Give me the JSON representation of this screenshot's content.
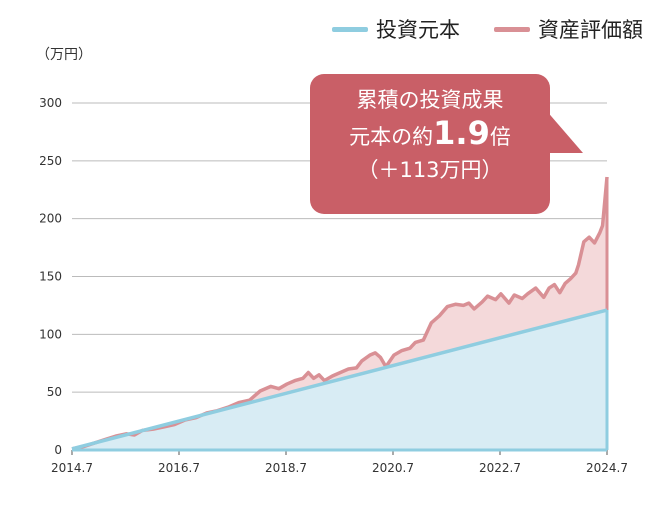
{
  "legend": [
    {
      "label": "投資元本",
      "color": "#8fcde0"
    },
    {
      "label": "資産評価額",
      "color": "#d99095"
    }
  ],
  "unit_label": "（万円）",
  "callout": {
    "line1": "累積の投資成果",
    "line2_pre": "元本の約",
    "line2_big": "1.9",
    "line2_post": "倍",
    "line3": "（＋113万円）",
    "color": "#c95f67"
  },
  "chart_data": {
    "type": "area",
    "x_ticks": [
      "2014.7",
      "2016.7",
      "2018.7",
      "2020.7",
      "2022.7",
      "2024.7"
    ],
    "y_ticks": [
      0,
      50,
      100,
      150,
      200,
      250,
      300
    ],
    "ylim": [
      0,
      300
    ],
    "xlim": [
      2014.583,
      2024.583
    ],
    "grid": true,
    "series": [
      {
        "name": "投資元本",
        "color": "#8fcde0",
        "fill": "#d8ecf4",
        "points": [
          [
            2014.583,
            1
          ],
          [
            2024.583,
            121
          ]
        ]
      },
      {
        "name": "資産評価額",
        "color": "#d99095",
        "fill": "#f4d9da",
        "points": [
          [
            2014.583,
            1
          ],
          [
            2014.8,
            3
          ],
          [
            2015.0,
            6
          ],
          [
            2015.2,
            9
          ],
          [
            2015.4,
            12
          ],
          [
            2015.6,
            14
          ],
          [
            2015.75,
            13
          ],
          [
            2015.9,
            17
          ],
          [
            2016.1,
            18
          ],
          [
            2016.3,
            20
          ],
          [
            2016.5,
            22
          ],
          [
            2016.7,
            26
          ],
          [
            2016.9,
            28
          ],
          [
            2017.1,
            32
          ],
          [
            2017.3,
            34
          ],
          [
            2017.5,
            37
          ],
          [
            2017.7,
            41
          ],
          [
            2017.9,
            43
          ],
          [
            2018.1,
            51
          ],
          [
            2018.3,
            55
          ],
          [
            2018.45,
            53
          ],
          [
            2018.6,
            57
          ],
          [
            2018.75,
            60
          ],
          [
            2018.9,
            62
          ],
          [
            2019.0,
            67
          ],
          [
            2019.1,
            62
          ],
          [
            2019.2,
            65
          ],
          [
            2019.3,
            60
          ],
          [
            2019.45,
            64
          ],
          [
            2019.6,
            67
          ],
          [
            2019.75,
            70
          ],
          [
            2019.9,
            71
          ],
          [
            2020.0,
            77
          ],
          [
            2020.15,
            82
          ],
          [
            2020.25,
            84
          ],
          [
            2020.35,
            80
          ],
          [
            2020.45,
            72
          ],
          [
            2020.6,
            82
          ],
          [
            2020.75,
            86
          ],
          [
            2020.9,
            88
          ],
          [
            2021.0,
            93
          ],
          [
            2021.15,
            95
          ],
          [
            2021.3,
            110
          ],
          [
            2021.45,
            116
          ],
          [
            2021.6,
            124
          ],
          [
            2021.75,
            126
          ],
          [
            2021.9,
            125
          ],
          [
            2022.0,
            127
          ],
          [
            2022.1,
            122
          ],
          [
            2022.25,
            128
          ],
          [
            2022.35,
            133
          ],
          [
            2022.5,
            130
          ],
          [
            2022.6,
            135
          ],
          [
            2022.75,
            127
          ],
          [
            2022.85,
            134
          ],
          [
            2023.0,
            131
          ],
          [
            2023.1,
            135
          ],
          [
            2023.25,
            140
          ],
          [
            2023.4,
            132
          ],
          [
            2023.5,
            140
          ],
          [
            2023.6,
            143
          ],
          [
            2023.7,
            136
          ],
          [
            2023.8,
            144
          ],
          [
            2023.9,
            148
          ],
          [
            2024.0,
            153
          ],
          [
            2024.05,
            160
          ],
          [
            2024.15,
            180
          ],
          [
            2024.25,
            184
          ],
          [
            2024.35,
            179
          ],
          [
            2024.45,
            188
          ],
          [
            2024.5,
            194
          ],
          [
            2024.583,
            236
          ]
        ]
      }
    ]
  }
}
